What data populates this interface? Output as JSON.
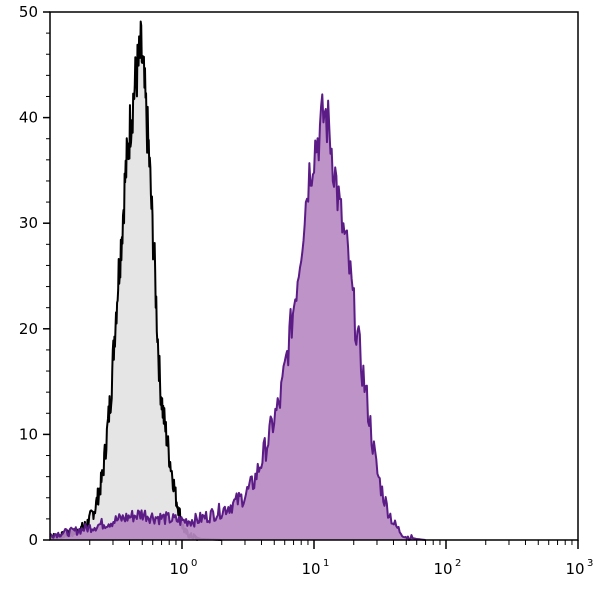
{
  "chart_data": {
    "type": "area",
    "title": "",
    "xlabel": "",
    "ylabel": "",
    "x_scale": "log10",
    "xlim": [
      0.1,
      1000
    ],
    "ylim": [
      0,
      50
    ],
    "grid": false,
    "legend": "none",
    "x_ticks": [
      {
        "base": "10",
        "exp": "0",
        "value": 1
      },
      {
        "base": "10",
        "exp": "1",
        "value": 10
      },
      {
        "base": "10",
        "exp": "2",
        "value": 100
      },
      {
        "base": "10",
        "exp": "3",
        "value": 1000
      }
    ],
    "y_ticks": [
      "0",
      "10",
      "20",
      "30",
      "40",
      "50"
    ],
    "series": [
      {
        "fill": "#e3e3e3",
        "stroke": "#000000",
        "points": [
          [
            0.1,
            0.3
          ],
          [
            0.13,
            0.5
          ],
          [
            0.16,
            0.8
          ],
          [
            0.19,
            1.5
          ],
          [
            0.22,
            3
          ],
          [
            0.25,
            6
          ],
          [
            0.27,
            10
          ],
          [
            0.29,
            14
          ],
          [
            0.31,
            20
          ],
          [
            0.33,
            25
          ],
          [
            0.35,
            29
          ],
          [
            0.37,
            34
          ],
          [
            0.39,
            37
          ],
          [
            0.41,
            40
          ],
          [
            0.43,
            42
          ],
          [
            0.45,
            44
          ],
          [
            0.47,
            45
          ],
          [
            0.49,
            46.5
          ],
          [
            0.51,
            44
          ],
          [
            0.53,
            41
          ],
          [
            0.56,
            37
          ],
          [
            0.59,
            31
          ],
          [
            0.62,
            26
          ],
          [
            0.65,
            20
          ],
          [
            0.68,
            15
          ],
          [
            0.72,
            12
          ],
          [
            0.76,
            10
          ],
          [
            0.8,
            8
          ],
          [
            0.85,
            6
          ],
          [
            0.9,
            4
          ],
          [
            0.95,
            2.8
          ],
          [
            1.0,
            1.5
          ],
          [
            1.05,
            0.8
          ],
          [
            1.15,
            0.4
          ],
          [
            1.4,
            0.1
          ],
          [
            2.0,
            0
          ]
        ]
      },
      {
        "fill": "#b98ac3",
        "stroke": "#5b1c86",
        "points": [
          [
            0.1,
            0.5
          ],
          [
            0.15,
            0.8
          ],
          [
            0.2,
            1.2
          ],
          [
            0.3,
            1.8
          ],
          [
            0.4,
            2.2
          ],
          [
            0.5,
            2.5
          ],
          [
            0.6,
            2.2
          ],
          [
            0.8,
            2.0
          ],
          [
            1.0,
            1.8
          ],
          [
            1.3,
            1.9
          ],
          [
            1.6,
            2.3
          ],
          [
            2.0,
            2.8
          ],
          [
            2.5,
            3.5
          ],
          [
            3.0,
            4.2
          ],
          [
            3.5,
            5.5
          ],
          [
            4.0,
            7.5
          ],
          [
            4.5,
            9.5
          ],
          [
            5.0,
            11.5
          ],
          [
            5.5,
            13
          ],
          [
            6.0,
            16
          ],
          [
            6.5,
            19
          ],
          [
            7.0,
            22
          ],
          [
            7.5,
            25
          ],
          [
            8.0,
            28
          ],
          [
            8.5,
            31
          ],
          [
            9.0,
            34
          ],
          [
            10.0,
            37
          ],
          [
            11.0,
            38.5
          ],
          [
            12.0,
            40.5
          ],
          [
            13.0,
            39
          ],
          [
            14.0,
            36
          ],
          [
            15.0,
            33
          ],
          [
            16.0,
            30.5
          ],
          [
            18.0,
            27
          ],
          [
            20.0,
            22
          ],
          [
            22.0,
            18
          ],
          [
            24.0,
            15
          ],
          [
            26.0,
            12
          ],
          [
            28.0,
            9
          ],
          [
            30.0,
            6.5
          ],
          [
            33.0,
            4.5
          ],
          [
            36.0,
            3
          ],
          [
            40.0,
            1.6
          ],
          [
            45.0,
            0.8
          ],
          [
            50.0,
            0.3
          ],
          [
            60.0,
            0.1
          ],
          [
            70.0,
            0
          ]
        ]
      }
    ]
  }
}
